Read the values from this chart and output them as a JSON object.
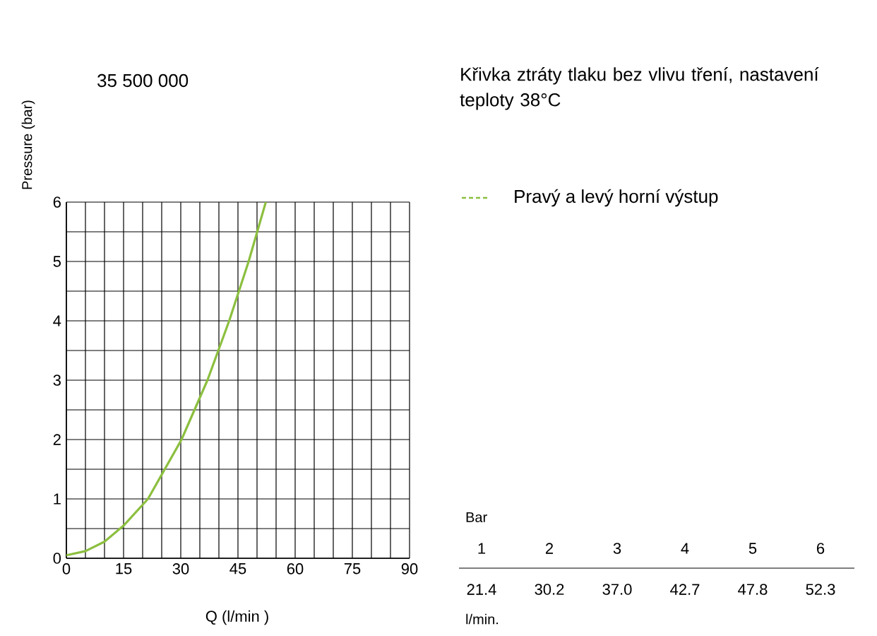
{
  "chart_data": {
    "type": "line",
    "title": "35 500 000",
    "subtitle": "Křivka ztráty tlaku bez vlivu tření, nastavení teploty 38°C",
    "xlabel": "Q  (l/min )",
    "ylabel": "Pressure (bar)",
    "xlim": [
      0,
      90
    ],
    "ylim": [
      0,
      6
    ],
    "xticks": [
      0,
      15,
      30,
      45,
      60,
      75,
      90
    ],
    "yticks": [
      0,
      1,
      2,
      3,
      4,
      5,
      6
    ],
    "grid": true,
    "legend": "top right",
    "annotations": [
      "Bar",
      "1",
      "2",
      "3",
      "4",
      "5",
      "6",
      "21.4",
      "30.2",
      "37.0",
      "42.7",
      "47.8",
      "52.3",
      "l/min."
    ],
    "series": [
      {
        "name": "Pravý a levý horní výstup",
        "color": "#8cbf3f",
        "x": [
          0,
          5,
          10,
          15,
          21.4,
          30.2,
          37.0,
          42.7,
          47.8,
          52.3
        ],
        "values": [
          0.05,
          0.12,
          0.28,
          0.55,
          1,
          2,
          3,
          4,
          5,
          6
        ]
      }
    ]
  }
}
